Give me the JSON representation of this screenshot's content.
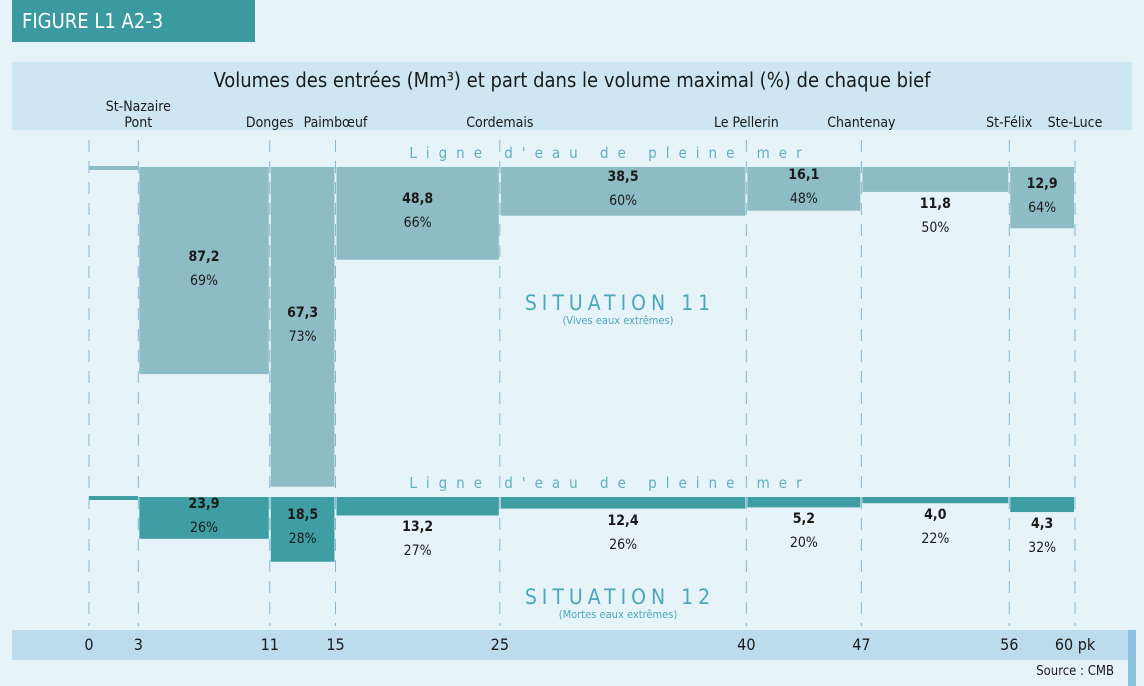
{
  "figure_label": "FIGURE L1 A2-3",
  "title": "Volumes des entrées (Mm³) et part dans le volume maximal (%) de chaque bief",
  "axis": {
    "ticks": [
      0,
      3,
      11,
      15,
      25,
      40,
      47,
      56,
      {
        "value": 60,
        "label": "60 pk"
      }
    ],
    "places": [
      null,
      "St-Nazaire\nPont",
      "Donges",
      "Paimbœuf",
      "Cordemais",
      "Le Pellerin",
      "Chantenay",
      "St-Félix",
      "Ste-Luce"
    ]
  },
  "situations": [
    {
      "title": "SITUATION 11",
      "subtitle": "(Vives eaux extrêmes)",
      "waterline": "Ligne d'eau de pleine mer",
      "color": "#8dbcc4",
      "volumes": [
        87.2,
        67.3,
        48.8,
        38.5,
        16.1,
        11.8,
        12.9
      ],
      "volume_labels": [
        "87,2",
        "67,3",
        "48,8",
        "38,5",
        "16,1",
        "11,8",
        "12,9"
      ],
      "shares": [
        69,
        73,
        66,
        60,
        48,
        50,
        64
      ],
      "share_labels": [
        "69%",
        "73%",
        "66%",
        "60%",
        "48%",
        "50%",
        "64%"
      ]
    },
    {
      "title": "SITUATION 12",
      "subtitle": "(Mortes eaux extrêmes)",
      "waterline": "Ligne d'eau de pleine mer",
      "color": "#3f9ea3",
      "volumes": [
        23.9,
        18.5,
        13.2,
        12.4,
        5.2,
        4.0,
        4.3
      ],
      "volume_labels": [
        "23,9",
        "18,5",
        "13,2",
        "12,4",
        "5,2",
        "4,0",
        "4,3"
      ],
      "shares": [
        26,
        28,
        27,
        26,
        20,
        22,
        32
      ],
      "share_labels": [
        "26%",
        "28%",
        "27%",
        "26%",
        "20%",
        "22%",
        "32%"
      ]
    }
  ],
  "source": "Source : CMB"
}
